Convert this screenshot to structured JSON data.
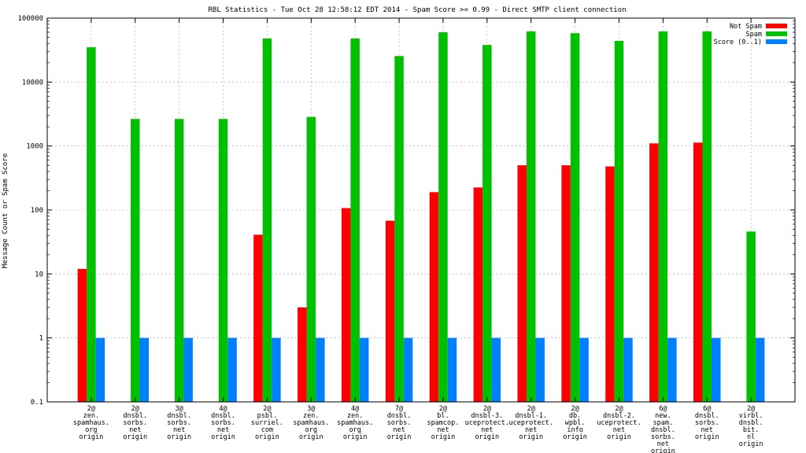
{
  "chart_data": {
    "type": "bar",
    "title": "RBL Statistics - Tue Oct 28 12:58:12 EDT 2014 - Spam Score >= 0.99 - Direct SMTP client connection",
    "ylabel": "Message Count or Spam Score",
    "xlabel": "",
    "yscale": "log",
    "ylim": [
      0.1,
      100000
    ],
    "yticks": [
      "0.1",
      "1",
      "10",
      "100",
      "1000",
      "10000",
      "100000"
    ],
    "grid": true,
    "legend_position": "top-right",
    "categories": [
      [
        "2@",
        "zen.",
        "spamhaus.",
        "org",
        "origin"
      ],
      [
        "2@",
        "dnsbl.",
        "sorbs.",
        "net",
        "origin"
      ],
      [
        "3@",
        "dnsbl.",
        "sorbs.",
        "net",
        "origin"
      ],
      [
        "4@",
        "dnsbl.",
        "sorbs.",
        "net",
        "origin"
      ],
      [
        "2@",
        "psbl.",
        "surriel.",
        "com",
        "origin"
      ],
      [
        "3@",
        "zen.",
        "spamhaus.",
        "org",
        "origin"
      ],
      [
        "4@",
        "zen.",
        "spamhaus.",
        "org",
        "origin"
      ],
      [
        "7@",
        "dnsbl.",
        "sorbs.",
        "net",
        "origin"
      ],
      [
        "2@",
        "bl.",
        "spamcop.",
        "net",
        "origin"
      ],
      [
        "2@",
        "dnsbl-3.",
        "uceprotect.",
        "net",
        "origin"
      ],
      [
        "2@",
        "dnsbl-1.",
        "uceprotect.",
        "net",
        "origin"
      ],
      [
        "2@",
        "db.",
        "wpbl.",
        "info",
        "origin"
      ],
      [
        "2@",
        "dnsbl-2.",
        "uceprotect.",
        "net",
        "origin"
      ],
      [
        "6@",
        "new.",
        "spam.",
        "dnsbl.",
        "sorbs.",
        "net",
        "origin"
      ],
      [
        "6@",
        "dnsbl.",
        "sorbs.",
        "net",
        "origin"
      ],
      [
        "2@",
        "virbl.",
        "dnsbl.",
        "bit.",
        "nl",
        "origin"
      ]
    ],
    "series": [
      {
        "name": "Not Spam",
        "color": "#ff0000",
        "values": [
          12,
          null,
          null,
          null,
          41,
          3,
          107,
          68,
          190,
          225,
          500,
          500,
          480,
          1100,
          1130,
          null
        ]
      },
      {
        "name": "Spam",
        "color": "#00c000",
        "values": [
          35000,
          2650,
          2650,
          2650,
          48000,
          2850,
          48000,
          25500,
          60000,
          38000,
          62000,
          58000,
          44000,
          62000,
          62000,
          46
        ]
      },
      {
        "name": "Score (0..1)",
        "color": "#0080ff",
        "values": [
          1,
          1,
          1,
          1,
          1,
          1,
          1,
          1,
          1,
          1,
          1,
          1,
          1,
          1,
          1,
          1
        ]
      }
    ]
  }
}
